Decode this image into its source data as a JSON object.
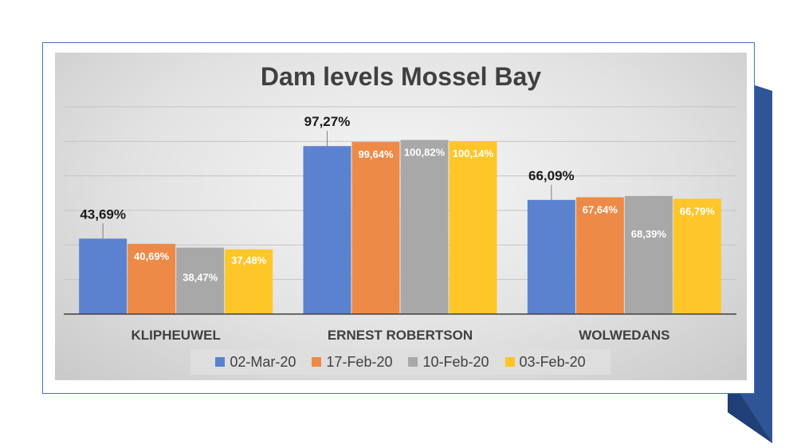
{
  "chart_data": {
    "type": "bar",
    "title": "Dam levels Mossel Bay",
    "categories": [
      "KLIPHEUWEL",
      "ERNEST ROBERTSON",
      "WOLWEDANS"
    ],
    "series": [
      {
        "name": "02-Mar-20",
        "color": "#5b82cf",
        "values": [
          43.69,
          97.27,
          66.09
        ],
        "labels": [
          "43,69%",
          "97,27%",
          "66,09%"
        ]
      },
      {
        "name": "17-Feb-20",
        "color": "#ed8a48",
        "values": [
          40.69,
          99.64,
          67.64
        ],
        "labels": [
          "40,69%",
          "99,64%",
          "67,64%"
        ]
      },
      {
        "name": "10-Feb-20",
        "color": "#a8a8a8",
        "values": [
          38.47,
          100.82,
          68.39
        ],
        "labels": [
          "38,47%",
          "100,82%",
          "68,39%"
        ]
      },
      {
        "name": "03-Feb-20",
        "color": "#ffc62a",
        "values": [
          37.48,
          100.14,
          66.79
        ],
        "labels": [
          "37,48%",
          "100,14%",
          "66,79%"
        ]
      }
    ],
    "ylim": [
      0,
      120
    ],
    "grid": true,
    "legend_position": "bottom"
  }
}
